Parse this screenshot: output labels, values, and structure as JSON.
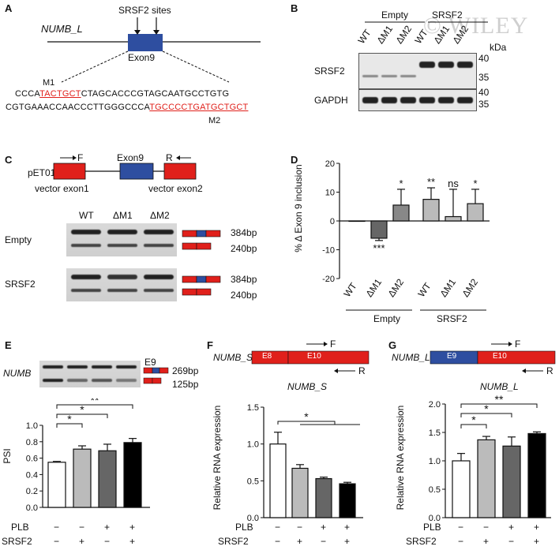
{
  "panels": {
    "A": {
      "letter": "A",
      "gene": "NUMB_L",
      "sites_label": "SRSF2 sites",
      "exon_label": "Exon9",
      "m1": "M1",
      "m2": "M2",
      "seq1_pre": "CCCA",
      "seq1_m1": "TACTGCT",
      "seq1_post": "CTAGCACCCGTAGCAATGCCTGTG",
      "seq2_pre": "CGTGAAACCAACCCTTGGGCCCA",
      "seq2_m2": "TGCCCCTGATGCTGCT"
    },
    "B": {
      "letter": "B",
      "group_empty": "Empty",
      "group_srsf2": "SRSF2",
      "lanes": [
        "WT",
        "ΔM1",
        "ΔM2",
        "WT",
        "ΔM1",
        "ΔM2"
      ],
      "kda": "kDa",
      "rows": [
        {
          "name": "SRSF2",
          "m1": "40",
          "m2": "35"
        },
        {
          "name": "GAPDH",
          "m1": "40",
          "m2": "35"
        }
      ],
      "watermark": "© WILEY"
    },
    "C": {
      "letter": "C",
      "plasmid": "pET01",
      "exon": "Exon9",
      "f": "F",
      "r": "R",
      "vec1": "vector exon1",
      "vec2": "vector exon2",
      "lanes": [
        "WT",
        "ΔM1",
        "ΔM2"
      ],
      "gels": [
        {
          "name": "Empty",
          "b1": "384bp",
          "b2": "240bp"
        },
        {
          "name": "SRSF2",
          "b1": "384bp",
          "b2": "240bp"
        }
      ]
    },
    "D": {
      "letter": "D",
      "ylabel": "% Δ Exon 9 inclusion",
      "group1": "Empty",
      "group2": "SRSF2"
    },
    "E": {
      "letter": "E",
      "gene": "NUMB",
      "e9": "E9",
      "b1": "269bp",
      "b2": "125bp",
      "ylabel": "PSI",
      "row1": "PLB",
      "row2": "SRSF2",
      "row1_signs": [
        "−",
        "−",
        "+",
        "+"
      ],
      "row2_signs": [
        "−",
        "+",
        "−",
        "+"
      ]
    },
    "F": {
      "letter": "F",
      "gene": "NUMB_S",
      "title": "NUMB_S",
      "e8": "E8",
      "e10": "E10",
      "f": "F",
      "r": "R",
      "ylabel": "Relative RNA expression",
      "row1": "PLB",
      "row2": "SRSF2",
      "row1_signs": [
        "−",
        "−",
        "+",
        "+"
      ],
      "row2_signs": [
        "−",
        "+",
        "−",
        "+"
      ]
    },
    "G": {
      "letter": "G",
      "gene": "NUMB_L",
      "title": "NUMB_L",
      "e9": "E9",
      "e10": "E10",
      "f": "F",
      "r": "R",
      "ylabel": "Relative RNA expression",
      "row1": "PLB",
      "row2": "SRSF2",
      "row1_signs": [
        "−",
        "−",
        "+",
        "+"
      ],
      "row2_signs": [
        "−",
        "+",
        "−",
        "+"
      ]
    }
  },
  "chart_data": [
    {
      "panel": "D",
      "type": "bar",
      "categories": [
        "WT",
        "ΔM1",
        "ΔM2",
        "WT",
        "ΔM1",
        "ΔM2"
      ],
      "values": [
        0,
        -6,
        5.5,
        7.5,
        1.5,
        6
      ],
      "errors": [
        0,
        0.8,
        5.5,
        4,
        9.5,
        5
      ],
      "significance": [
        "",
        "***",
        "*",
        "**",
        "ns",
        "*"
      ],
      "colors": [
        "#ffffff",
        "#666666",
        "#888888",
        "#bbbbbb",
        "#bbbbbb",
        "#bbbbbb"
      ],
      "ylabel": "% Δ Exon 9 inclusion",
      "ylim": [
        -20,
        20
      ],
      "yticks": [
        "-20",
        "-10",
        "0",
        "10",
        "20"
      ]
    },
    {
      "panel": "E",
      "type": "bar",
      "values": [
        0.55,
        0.71,
        0.69,
        0.79
      ],
      "errors": [
        0.01,
        0.04,
        0.08,
        0.05
      ],
      "colors": [
        "#ffffff",
        "#bbbbbb",
        "#666666",
        "#000000"
      ],
      "ylabel": "PSI",
      "ylim": [
        0,
        1.0
      ],
      "yticks": [
        "0.0",
        "0.2",
        "0.4",
        "0.6",
        "0.8",
        "1.0"
      ],
      "significance": [
        "*",
        "*",
        "**"
      ]
    },
    {
      "panel": "F",
      "type": "bar",
      "values": [
        1.0,
        0.67,
        0.53,
        0.46
      ],
      "errors": [
        0.16,
        0.05,
        0.02,
        0.02
      ],
      "colors": [
        "#ffffff",
        "#bbbbbb",
        "#666666",
        "#000000"
      ],
      "ylabel": "Relative RNA expression",
      "ylim": [
        0,
        1.5
      ],
      "yticks": [
        "0.0",
        "0.5",
        "1.0",
        "1.5"
      ],
      "significance": [
        "*"
      ]
    },
    {
      "panel": "G",
      "type": "bar",
      "values": [
        1.0,
        1.37,
        1.26,
        1.48
      ],
      "errors": [
        0.13,
        0.06,
        0.16,
        0.03
      ],
      "colors": [
        "#ffffff",
        "#bbbbbb",
        "#666666",
        "#000000"
      ],
      "ylabel": "Relative RNA expression",
      "ylim": [
        0,
        2.0
      ],
      "yticks": [
        "0.0",
        "0.5",
        "1.0",
        "1.5",
        "2.0"
      ],
      "significance": [
        "*",
        "*",
        "**"
      ]
    }
  ]
}
